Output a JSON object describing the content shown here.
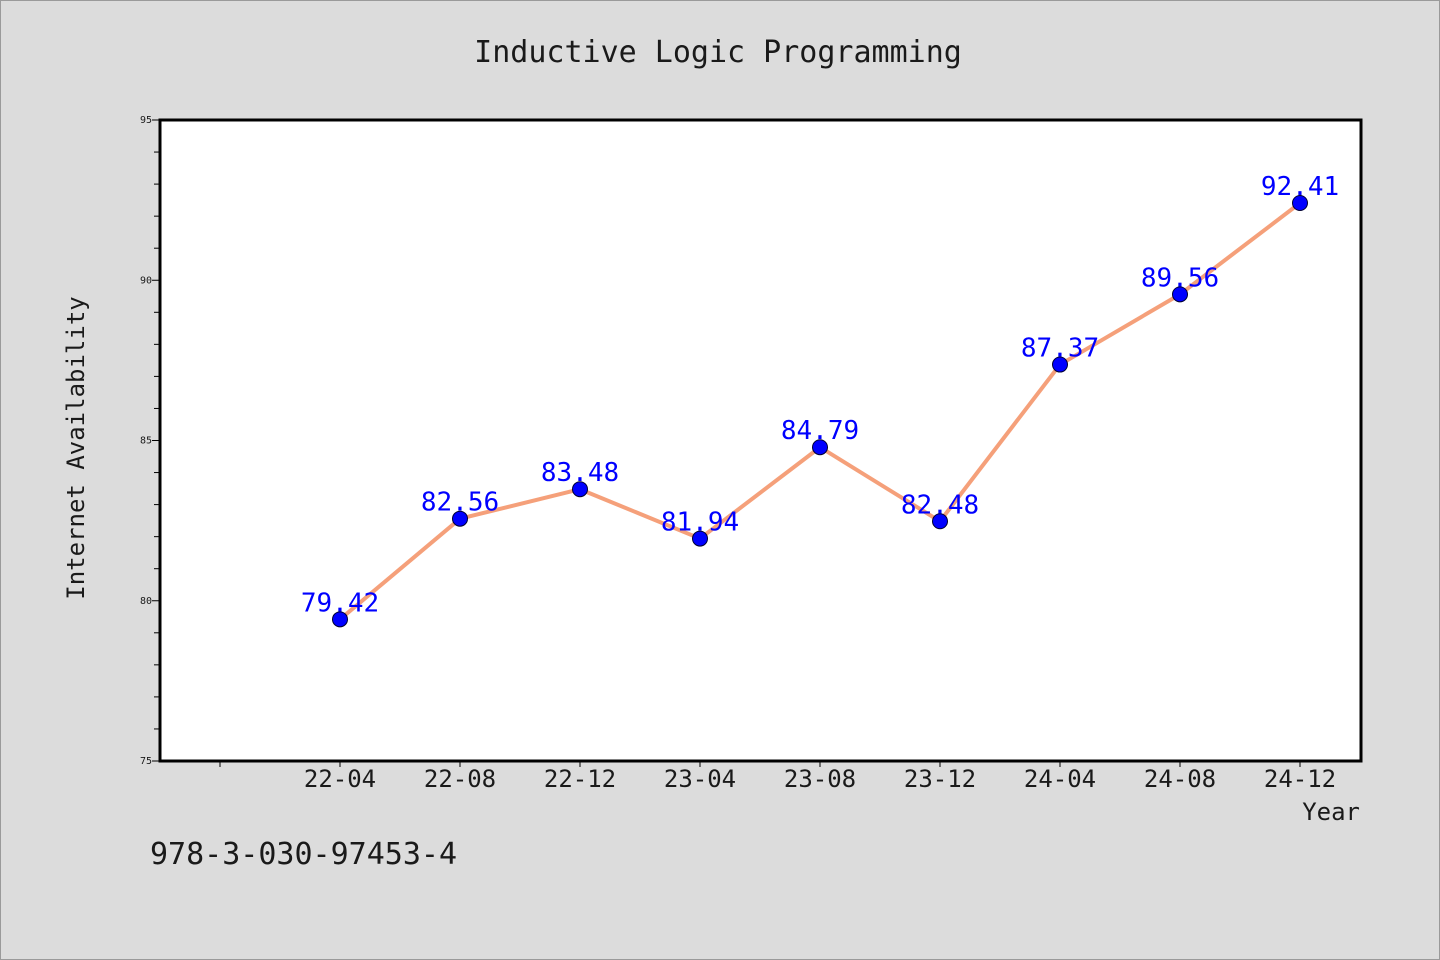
{
  "chart_data": {
    "type": "line",
    "title": "Inductive Logic Programming",
    "xlabel": "Year",
    "ylabel": "Internet Availability",
    "categories": [
      "22-04",
      "22-08",
      "22-12",
      "23-04",
      "23-08",
      "23-12",
      "24-04",
      "24-08",
      "24-12"
    ],
    "series": [
      {
        "values": [
          79.42,
          82.56,
          83.48,
          81.94,
          84.79,
          82.48,
          87.37,
          89.56,
          92.41
        ],
        "line_color": "#f5a07a",
        "marker_color": "#0000ff"
      }
    ],
    "data_labels": [
      "79.42",
      "82.56",
      "83.48",
      "81.94",
      "84.79",
      "82.48",
      "87.37",
      "89.56",
      "92.41"
    ],
    "ylim": [
      75,
      95
    ],
    "yticks": [
      75,
      80,
      85,
      90,
      95
    ],
    "grid": false,
    "legend": "none"
  },
  "footer": {
    "isbn": "978-3-030-97453-4"
  }
}
